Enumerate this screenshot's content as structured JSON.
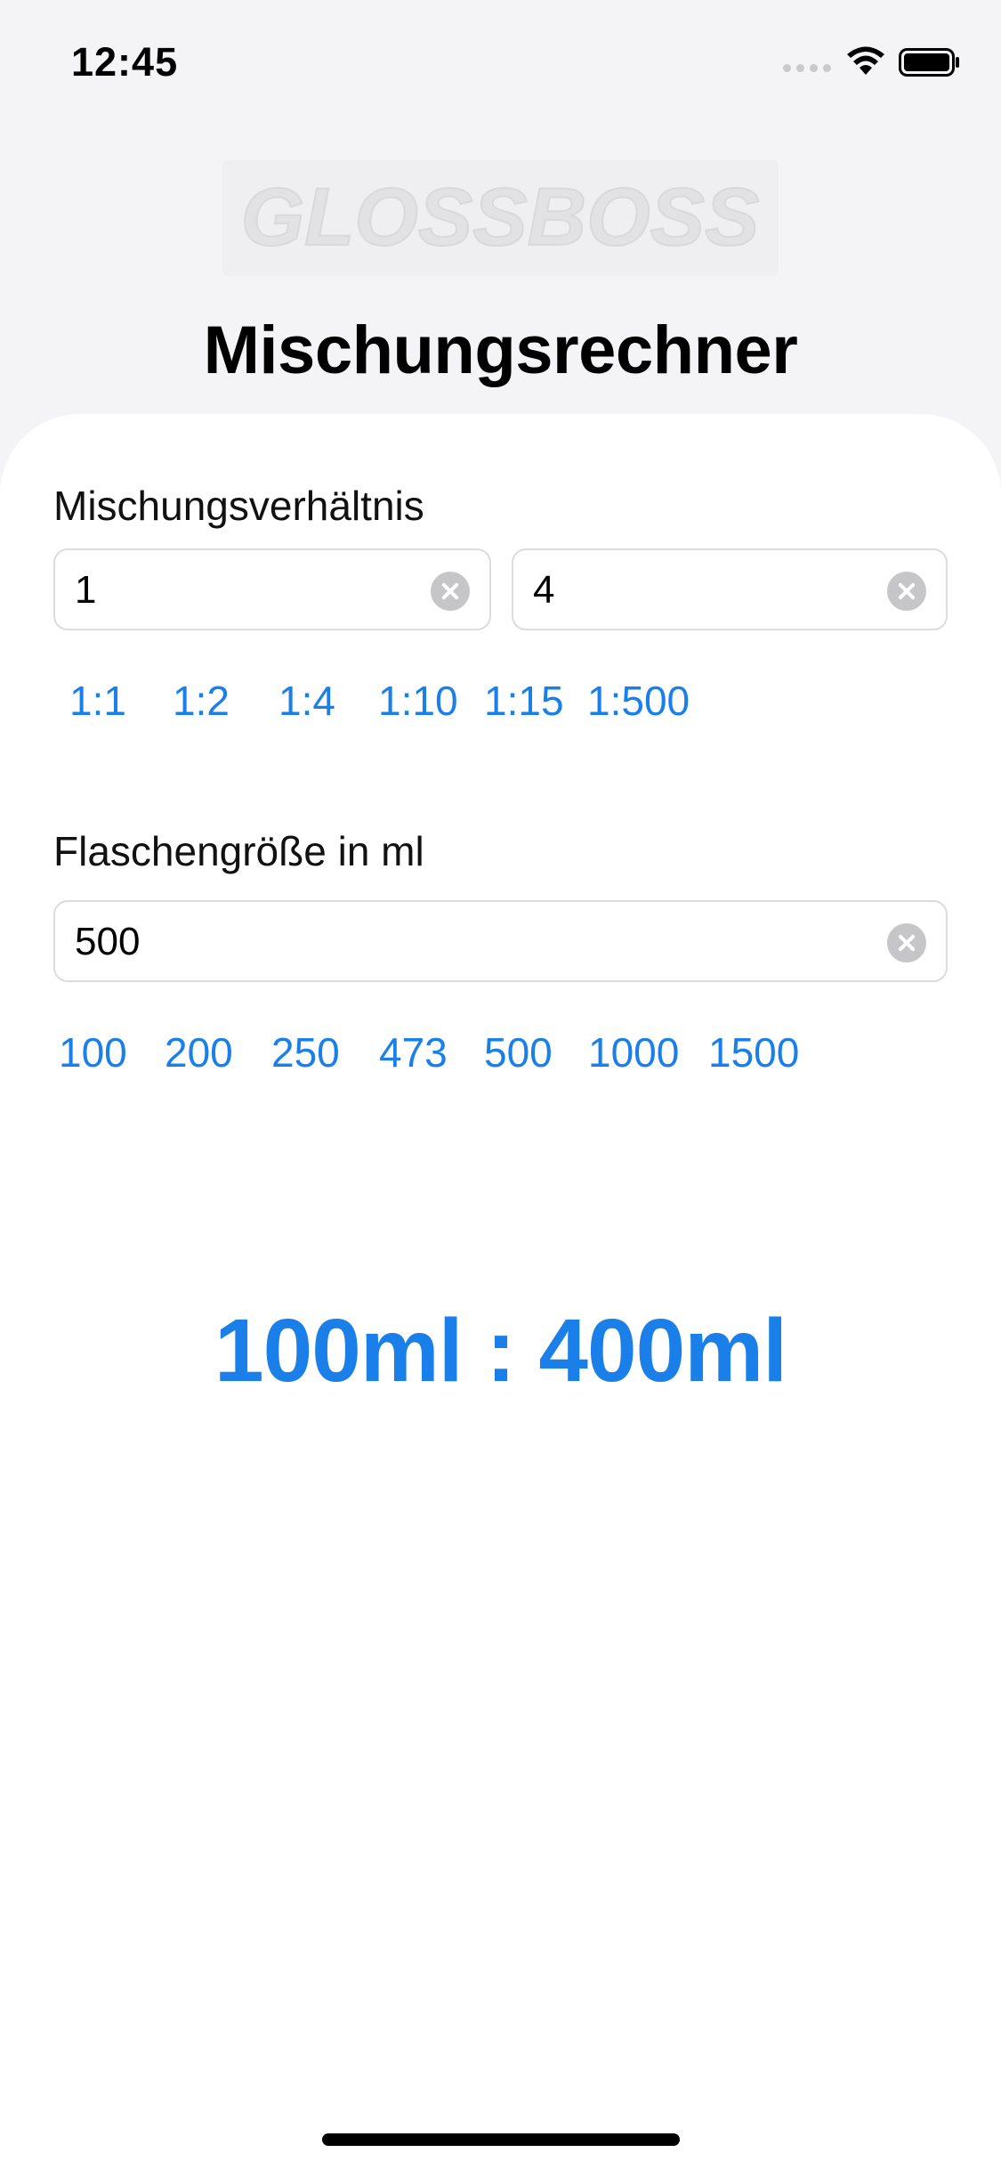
{
  "status_bar": {
    "time": "12:45"
  },
  "header": {
    "logo_text": "GLOSSBOSS",
    "title": "Mischungsrechner"
  },
  "ratio": {
    "label": "Mischungsverhältnis",
    "left_value": "1",
    "right_value": "4",
    "presets": [
      "1:1",
      "1:2",
      "1:4",
      "1:10",
      "1:15",
      "1:500"
    ]
  },
  "bottle": {
    "label": "Flaschengröße in ml",
    "value": "500",
    "presets": [
      "100",
      "200",
      "250",
      "473",
      "500",
      "1000",
      "1500"
    ]
  },
  "result": {
    "text": "100ml : 400ml"
  },
  "colors": {
    "accent": "#1a7fe8",
    "background": "#f4f3f6",
    "card": "#ffffff"
  }
}
